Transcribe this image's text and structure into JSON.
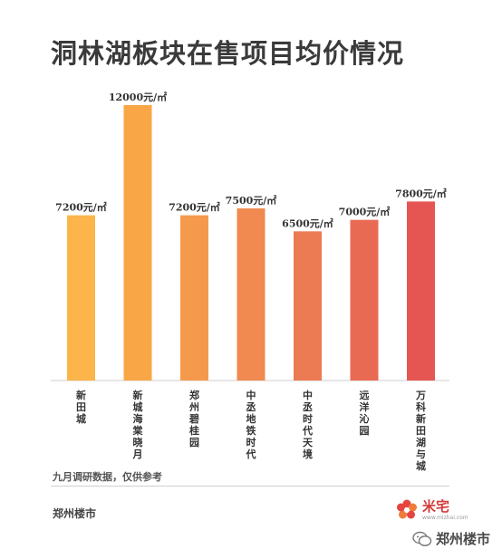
{
  "header": {
    "title": "洞林湖板块在售项目均价情况"
  },
  "chart_data": {
    "type": "bar",
    "title": "洞林湖板块在售项目均价情况",
    "categories": [
      "新田城",
      "新城海棠晓月",
      "郑州碧桂园",
      "中丞地铁时代",
      "中丞时代天境",
      "远洋沁园",
      "万科新田湖与城"
    ],
    "values": [
      7200,
      12000,
      7200,
      7500,
      6500,
      7000,
      7800
    ],
    "value_labels": [
      "7200元/㎡",
      "12000元/㎡",
      "7200元/㎡",
      "7500元/㎡",
      "6500元/㎡",
      "7000元/㎡",
      "7800元/㎡"
    ],
    "colors": [
      "#fbb54a",
      "#f9a746",
      "#f59a4d",
      "#f08a50",
      "#ec7a52",
      "#e96a52",
      "#e55652"
    ],
    "ylim": [
      0,
      12000
    ],
    "grid": false,
    "legend": "none"
  },
  "footer": {
    "note": "九月调研数据，仅供参考",
    "source": "郑州楼市",
    "logo_name": "米宅",
    "logo_url": "www.mizhai.com",
    "watermark": "郑州楼市"
  }
}
